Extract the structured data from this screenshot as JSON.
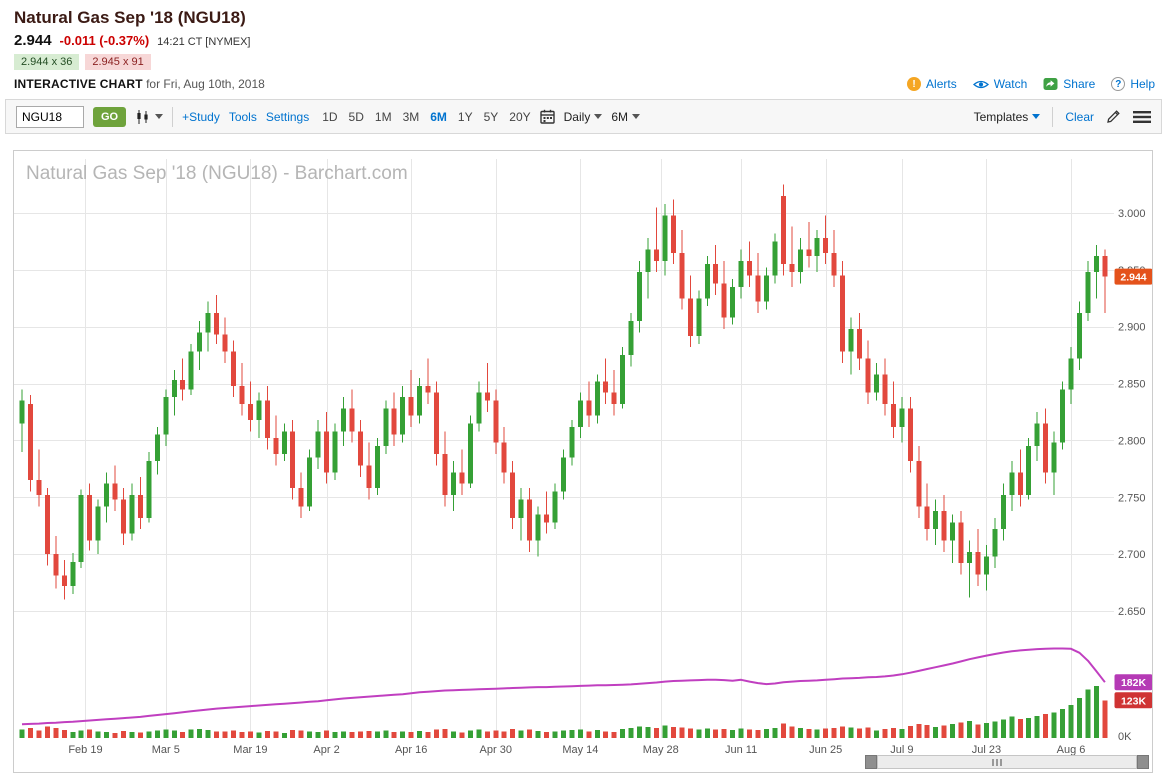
{
  "header": {
    "title": "Natural Gas Sep '18 (NGU18)",
    "last_price": "2.944",
    "change": "-0.011 (-0.37%)",
    "quote_time": "14:21 CT [NYMEX]",
    "bid": "2.944 x 36",
    "ask": "2.945 x 91",
    "chart_label": "INTERACTIVE CHART",
    "chart_date": "for Fri, Aug 10th, 2018",
    "links": {
      "alerts": "Alerts",
      "watch": "Watch",
      "share": "Share",
      "help": "Help"
    }
  },
  "toolbar": {
    "symbol_value": "NGU18",
    "go_label": "GO",
    "study": "+Study",
    "tools": "Tools",
    "settings": "Settings",
    "ranges": [
      "1D",
      "5D",
      "1M",
      "3M",
      "6M",
      "1Y",
      "5Y",
      "20Y"
    ],
    "active_range": "6M",
    "frequency": "Daily",
    "range_dropdown": "6M",
    "templates": "Templates",
    "clear": "Clear"
  },
  "chart_data": {
    "type": "candlestick",
    "title": "Natural Gas Sep '18 (NGU18)",
    "watermark": "Natural Gas Sep '18 (NGU18) - Barchart.com",
    "frequency": "Daily",
    "range": "6M",
    "last_close": 2.944,
    "y_axis": {
      "min": 2.65,
      "max": 3.0,
      "step": 0.05,
      "labels": [
        "3.000",
        "2.950",
        "2.900",
        "2.850",
        "2.800",
        "2.750",
        "2.700",
        "2.650"
      ]
    },
    "x_ticks": [
      {
        "label": "Feb 19",
        "i": 7.5
      },
      {
        "label": "Mar 5",
        "i": 17
      },
      {
        "label": "Mar 19",
        "i": 27
      },
      {
        "label": "Apr 2",
        "i": 36
      },
      {
        "label": "Apr 16",
        "i": 46
      },
      {
        "label": "Apr 30",
        "i": 56
      },
      {
        "label": "May 14",
        "i": 66
      },
      {
        "label": "May 28",
        "i": 75.5
      },
      {
        "label": "Jun 11",
        "i": 85
      },
      {
        "label": "Jun 25",
        "i": 95
      },
      {
        "label": "Jul 9",
        "i": 104
      },
      {
        "label": "Jul 23",
        "i": 114
      },
      {
        "label": "Aug 6",
        "i": 124
      }
    ],
    "price_badge": {
      "text": "2.944",
      "color": "#e4521b"
    },
    "volume_badges": [
      {
        "text": "182K",
        "value_k": 182,
        "color": "#b53ab5"
      },
      {
        "text": "123K",
        "value_k": 123,
        "color": "#cf3333"
      }
    ],
    "zero_label": "0K",
    "volume_axis_max_k": 310,
    "colors": {
      "up": "#35a035",
      "down": "#e2483d",
      "open_interest_line": "#c03fc0",
      "grid": "#e6e6e6"
    },
    "legend_note": "green/red bars = daily volume, magenta line = open interest",
    "candles_ohlc": [
      [
        2.815,
        2.845,
        2.79,
        2.835
      ],
      [
        2.832,
        2.84,
        2.755,
        2.765
      ],
      [
        2.765,
        2.792,
        2.742,
        2.752
      ],
      [
        2.752,
        2.758,
        2.69,
        2.7
      ],
      [
        2.7,
        2.716,
        2.67,
        2.681
      ],
      [
        2.681,
        2.695,
        2.66,
        2.672
      ],
      [
        2.672,
        2.701,
        2.665,
        2.693
      ],
      [
        2.693,
        2.757,
        2.688,
        2.752
      ],
      [
        2.752,
        2.762,
        2.703,
        2.712
      ],
      [
        2.712,
        2.748,
        2.7,
        2.742
      ],
      [
        2.742,
        2.772,
        2.728,
        2.762
      ],
      [
        2.762,
        2.778,
        2.738,
        2.748
      ],
      [
        2.748,
        2.758,
        2.708,
        2.718
      ],
      [
        2.718,
        2.762,
        2.712,
        2.752
      ],
      [
        2.752,
        2.768,
        2.722,
        2.732
      ],
      [
        2.732,
        2.79,
        2.728,
        2.782
      ],
      [
        2.782,
        2.812,
        2.77,
        2.805
      ],
      [
        2.805,
        2.845,
        2.795,
        2.838
      ],
      [
        2.838,
        2.862,
        2.822,
        2.853
      ],
      [
        2.853,
        2.872,
        2.835,
        2.845
      ],
      [
        2.845,
        2.885,
        2.84,
        2.878
      ],
      [
        2.878,
        2.905,
        2.862,
        2.895
      ],
      [
        2.895,
        2.922,
        2.878,
        2.912
      ],
      [
        2.912,
        2.928,
        2.885,
        2.893
      ],
      [
        2.893,
        2.908,
        2.868,
        2.878
      ],
      [
        2.878,
        2.888,
        2.838,
        2.848
      ],
      [
        2.848,
        2.868,
        2.822,
        2.832
      ],
      [
        2.832,
        2.852,
        2.808,
        2.818
      ],
      [
        2.818,
        2.842,
        2.802,
        2.835
      ],
      [
        2.835,
        2.848,
        2.792,
        2.802
      ],
      [
        2.802,
        2.822,
        2.778,
        2.788
      ],
      [
        2.788,
        2.815,
        2.782,
        2.808
      ],
      [
        2.808,
        2.818,
        2.748,
        2.758
      ],
      [
        2.758,
        2.772,
        2.732,
        2.742
      ],
      [
        2.742,
        2.792,
        2.738,
        2.785
      ],
      [
        2.785,
        2.818,
        2.775,
        2.808
      ],
      [
        2.808,
        2.825,
        2.762,
        2.772
      ],
      [
        2.772,
        2.815,
        2.765,
        2.808
      ],
      [
        2.808,
        2.838,
        2.795,
        2.828
      ],
      [
        2.828,
        2.845,
        2.798,
        2.808
      ],
      [
        2.808,
        2.818,
        2.768,
        2.778
      ],
      [
        2.778,
        2.798,
        2.748,
        2.758
      ],
      [
        2.758,
        2.802,
        2.752,
        2.795
      ],
      [
        2.795,
        2.835,
        2.788,
        2.828
      ],
      [
        2.828,
        2.842,
        2.795,
        2.805
      ],
      [
        2.805,
        2.848,
        2.798,
        2.838
      ],
      [
        2.838,
        2.862,
        2.812,
        2.822
      ],
      [
        2.822,
        2.855,
        2.815,
        2.848
      ],
      [
        2.848,
        2.872,
        2.832,
        2.842
      ],
      [
        2.842,
        2.852,
        2.778,
        2.788
      ],
      [
        2.788,
        2.808,
        2.742,
        2.752
      ],
      [
        2.752,
        2.782,
        2.738,
        2.772
      ],
      [
        2.772,
        2.792,
        2.752,
        2.762
      ],
      [
        2.762,
        2.822,
        2.758,
        2.815
      ],
      [
        2.815,
        2.852,
        2.808,
        2.842
      ],
      [
        2.842,
        2.868,
        2.825,
        2.835
      ],
      [
        2.835,
        2.845,
        2.788,
        2.798
      ],
      [
        2.798,
        2.812,
        2.762,
        2.772
      ],
      [
        2.772,
        2.782,
        2.722,
        2.732
      ],
      [
        2.732,
        2.758,
        2.712,
        2.748
      ],
      [
        2.748,
        2.758,
        2.702,
        2.712
      ],
      [
        2.712,
        2.742,
        2.698,
        2.735
      ],
      [
        2.735,
        2.755,
        2.718,
        2.728
      ],
      [
        2.728,
        2.762,
        2.722,
        2.755
      ],
      [
        2.755,
        2.792,
        2.748,
        2.785
      ],
      [
        2.785,
        2.818,
        2.778,
        2.812
      ],
      [
        2.812,
        2.842,
        2.802,
        2.835
      ],
      [
        2.835,
        2.852,
        2.812,
        2.822
      ],
      [
        2.822,
        2.858,
        2.815,
        2.852
      ],
      [
        2.852,
        2.872,
        2.832,
        2.842
      ],
      [
        2.842,
        2.862,
        2.822,
        2.832
      ],
      [
        2.832,
        2.882,
        2.828,
        2.875
      ],
      [
        2.875,
        2.912,
        2.865,
        2.905
      ],
      [
        2.905,
        2.958,
        2.895,
        2.948
      ],
      [
        2.948,
        2.978,
        2.925,
        2.968
      ],
      [
        2.968,
        3.005,
        2.948,
        2.958
      ],
      [
        2.958,
        3.008,
        2.945,
        2.998
      ],
      [
        2.998,
        3.012,
        2.955,
        2.965
      ],
      [
        2.965,
        2.985,
        2.915,
        2.925
      ],
      [
        2.925,
        2.945,
        2.882,
        2.892
      ],
      [
        2.892,
        2.932,
        2.885,
        2.925
      ],
      [
        2.925,
        2.962,
        2.918,
        2.955
      ],
      [
        2.955,
        2.972,
        2.928,
        2.938
      ],
      [
        2.938,
        2.958,
        2.898,
        2.908
      ],
      [
        2.908,
        2.942,
        2.902,
        2.935
      ],
      [
        2.935,
        2.968,
        2.925,
        2.958
      ],
      [
        2.958,
        2.975,
        2.935,
        2.945
      ],
      [
        2.945,
        2.965,
        2.912,
        2.922
      ],
      [
        2.922,
        2.952,
        2.915,
        2.945
      ],
      [
        2.945,
        2.982,
        2.938,
        2.975
      ],
      [
        3.015,
        3.025,
        2.945,
        2.955
      ],
      [
        2.955,
        2.988,
        2.935,
        2.948
      ],
      [
        2.948,
        2.978,
        2.938,
        2.968
      ],
      [
        2.968,
        2.992,
        2.952,
        2.962
      ],
      [
        2.962,
        2.985,
        2.948,
        2.978
      ],
      [
        2.978,
        2.998,
        2.955,
        2.965
      ],
      [
        2.965,
        2.985,
        2.935,
        2.945
      ],
      [
        2.945,
        2.958,
        2.868,
        2.878
      ],
      [
        2.878,
        2.908,
        2.858,
        2.898
      ],
      [
        2.898,
        2.912,
        2.862,
        2.872
      ],
      [
        2.872,
        2.888,
        2.832,
        2.842
      ],
      [
        2.842,
        2.868,
        2.835,
        2.858
      ],
      [
        2.858,
        2.872,
        2.822,
        2.832
      ],
      [
        2.832,
        2.852,
        2.802,
        2.812
      ],
      [
        2.812,
        2.838,
        2.798,
        2.828
      ],
      [
        2.828,
        2.838,
        2.772,
        2.782
      ],
      [
        2.782,
        2.795,
        2.732,
        2.742
      ],
      [
        2.742,
        2.762,
        2.712,
        2.722
      ],
      [
        2.722,
        2.748,
        2.708,
        2.738
      ],
      [
        2.738,
        2.752,
        2.702,
        2.712
      ],
      [
        2.712,
        2.735,
        2.692,
        2.728
      ],
      [
        2.728,
        2.738,
        2.682,
        2.692
      ],
      [
        2.692,
        2.712,
        2.662,
        2.702
      ],
      [
        2.702,
        2.722,
        2.672,
        2.682
      ],
      [
        2.682,
        2.708,
        2.668,
        2.698
      ],
      [
        2.698,
        2.732,
        2.688,
        2.722
      ],
      [
        2.722,
        2.762,
        2.712,
        2.752
      ],
      [
        2.752,
        2.782,
        2.738,
        2.772
      ],
      [
        2.772,
        2.792,
        2.742,
        2.752
      ],
      [
        2.752,
        2.802,
        2.748,
        2.795
      ],
      [
        2.795,
        2.825,
        2.782,
        2.815
      ],
      [
        2.815,
        2.828,
        2.762,
        2.772
      ],
      [
        2.772,
        2.808,
        2.752,
        2.798
      ],
      [
        2.798,
        2.852,
        2.792,
        2.845
      ],
      [
        2.845,
        2.882,
        2.832,
        2.872
      ],
      [
        2.872,
        2.922,
        2.862,
        2.912
      ],
      [
        2.912,
        2.958,
        2.905,
        2.948
      ],
      [
        2.948,
        2.972,
        2.925,
        2.962
      ],
      [
        2.962,
        2.968,
        2.912,
        2.944
      ]
    ],
    "volumes_k": [
      28,
      32,
      25,
      38,
      33,
      26,
      20,
      24,
      27,
      22,
      19,
      17,
      23,
      20,
      18,
      22,
      25,
      28,
      24,
      20,
      27,
      30,
      26,
      22,
      21,
      24,
      20,
      22,
      18,
      23,
      21,
      17,
      26,
      24,
      22,
      20,
      24,
      20,
      22,
      19,
      21,
      23,
      22,
      25,
      19,
      22,
      20,
      23,
      19,
      27,
      29,
      22,
      18,
      25,
      27,
      21,
      24,
      22,
      29,
      24,
      27,
      23,
      19,
      21,
      24,
      26,
      28,
      22,
      26,
      21,
      20,
      29,
      33,
      38,
      36,
      32,
      40,
      36,
      34,
      31,
      28,
      31,
      27,
      29,
      26,
      31,
      28,
      26,
      29,
      33,
      48,
      38,
      32,
      30,
      28,
      31,
      33,
      38,
      35,
      31,
      34,
      24,
      29,
      33,
      30,
      39,
      46,
      42,
      36,
      41,
      45,
      50,
      56,
      44,
      49,
      54,
      61,
      70,
      62,
      66,
      72,
      78,
      84,
      95,
      108,
      130,
      158,
      170,
      123
    ],
    "open_interest_k": [
      45,
      46,
      47,
      49,
      50,
      52,
      53,
      55,
      57,
      59,
      61,
      63,
      65,
      67,
      69,
      72,
      75,
      78,
      81,
      84,
      87,
      90,
      93,
      96,
      98,
      100,
      102,
      104,
      106,
      108,
      110,
      112,
      114,
      116,
      118,
      120,
      123,
      126,
      129,
      131,
      133,
      135,
      137,
      139,
      141,
      143,
      146,
      149,
      151,
      153,
      155,
      156,
      157,
      158,
      159,
      160,
      161,
      162,
      163,
      164,
      165,
      166,
      166,
      167,
      168,
      169,
      170,
      171,
      172,
      172,
      173,
      174,
      175,
      177,
      179,
      181,
      184,
      186,
      187,
      188,
      189,
      190,
      190,
      189,
      187,
      190,
      184,
      179,
      176,
      178,
      182,
      184,
      186,
      187,
      188,
      190,
      192,
      194,
      195,
      196,
      198,
      199,
      201,
      204,
      208,
      213,
      219,
      225,
      231,
      237,
      243,
      250,
      257,
      263,
      269,
      274,
      279,
      283,
      286,
      288,
      290,
      291,
      292,
      292,
      291,
      278,
      252,
      218,
      182
    ]
  }
}
